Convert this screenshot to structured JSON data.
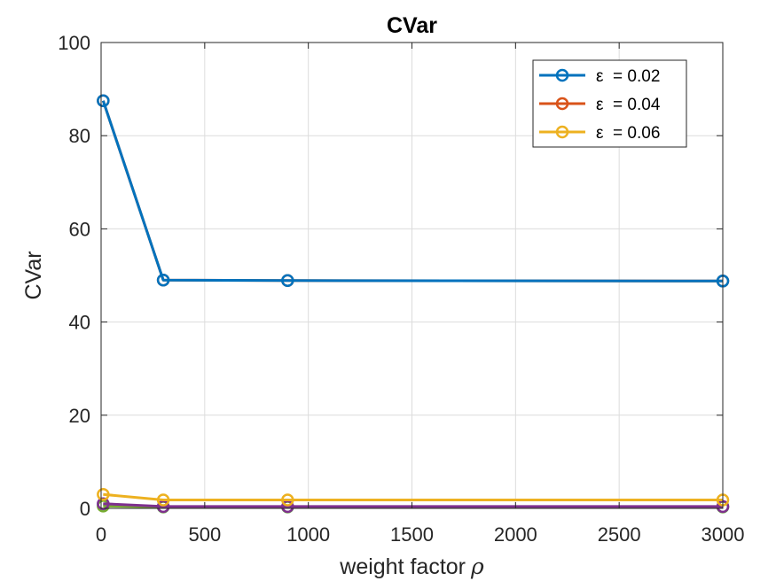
{
  "chart_data": {
    "type": "line",
    "title": "CVar",
    "xlabel": "weight factor",
    "xlabel_symbol": "ρ",
    "ylabel": "CVar",
    "xlim": [
      0,
      3000
    ],
    "ylim": [
      0,
      100
    ],
    "xticks": [
      0,
      500,
      1000,
      1500,
      2000,
      2500,
      3000
    ],
    "yticks": [
      0,
      20,
      40,
      60,
      80,
      100
    ],
    "x_tick_labels": [
      "0",
      "500",
      "1000",
      "1500",
      "2000",
      "2500",
      "3000"
    ],
    "y_tick_labels": [
      "0",
      "20",
      "40",
      "60",
      "80",
      "100"
    ],
    "grid": true,
    "legend_position": "top-right",
    "x": [
      10,
      300,
      900,
      3000
    ],
    "series": [
      {
        "name": "ε  = 0.02",
        "values": [
          87.5,
          49.0,
          48.9,
          48.8
        ],
        "color": "#0072BD",
        "in_legend": true
      },
      {
        "name": "ε  = 0.04",
        "values": [
          87.5,
          49.0,
          48.9,
          48.8
        ],
        "color": "#D95319",
        "in_legend": true
      },
      {
        "name": "ε  = 0.06",
        "values": [
          3.0,
          1.8,
          1.8,
          1.8
        ],
        "color": "#EDB120",
        "in_legend": true
      },
      {
        "values": [
          1.0,
          0.4,
          0.4,
          0.4
        ],
        "color": "#7E2F8E",
        "in_legend": false
      },
      {
        "values": [
          0.5,
          0.3,
          0.3,
          0.3
        ],
        "color": "#77AC30",
        "in_legend": false
      },
      {
        "values": [
          0.8,
          0.3,
          0.3,
          0.3
        ],
        "color": "#4DBEEE",
        "in_legend": false
      }
    ]
  }
}
